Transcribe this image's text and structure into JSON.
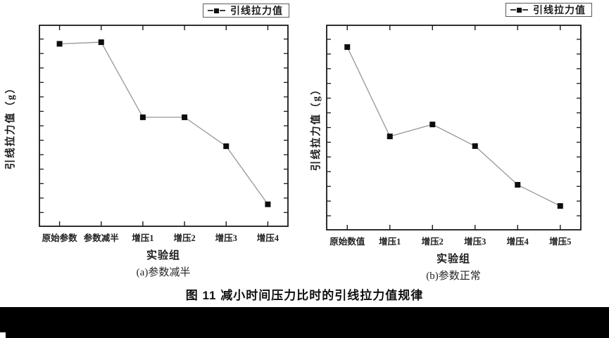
{
  "caption": "图 11 减小时间压力比时的引线拉力值规律",
  "colors": {
    "axis": "#1a1a1a",
    "line": "#969696",
    "marker": "#0e0e0e",
    "background": "#ffffff",
    "bottom_bar": "#000000"
  },
  "chart_data": [
    {
      "type": "line",
      "title": "(a)参数减半",
      "legend": "引线拉力值",
      "legend_position": "top-center-outside",
      "xlabel": "实验组",
      "ylabel": "引线拉力值（g）",
      "categories": [
        "原始参数",
        "参数减半",
        "增压1",
        "增压2",
        "增压3",
        "增压4"
      ],
      "series": [
        {
          "name": "引线拉力值",
          "values_relative": [
            0.905,
            0.913,
            0.542,
            0.542,
            0.399,
            0.112
          ]
        }
      ],
      "y_tick_labels": "none (unlabeled minor ticks only)",
      "ylim_relative": [
        0,
        1
      ],
      "grid": false,
      "marker": "filled-square"
    },
    {
      "type": "line",
      "title": "(b)参数正常",
      "legend": "引线拉力值",
      "legend_position": "top-center-outside",
      "xlabel": "实验组",
      "ylabel": "引线拉力值（g）",
      "categories": [
        "原始数值",
        "增压1",
        "增压2",
        "增压3",
        "增压4",
        "增压5"
      ],
      "series": [
        {
          "name": "引线拉力值",
          "values_relative": [
            0.891,
            0.457,
            0.515,
            0.41,
            0.222,
            0.119
          ]
        }
      ],
      "y_tick_labels": "none (unlabeled minor ticks only)",
      "ylim_relative": [
        0,
        1
      ],
      "grid": false,
      "marker": "filled-square"
    }
  ]
}
